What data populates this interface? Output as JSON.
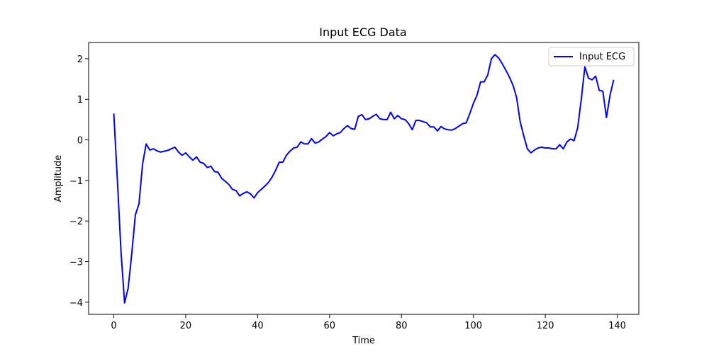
{
  "chart_data": {
    "type": "line",
    "title": "Input ECG Data",
    "xlabel": "Time",
    "ylabel": "Amplitude",
    "xlim": [
      -7,
      146
    ],
    "ylim": [
      -4.3,
      2.4
    ],
    "xticks": [
      0,
      20,
      40,
      60,
      80,
      100,
      120,
      140
    ],
    "yticks": [
      -4,
      -3,
      -2,
      -1,
      0,
      1,
      2
    ],
    "ytick_labels": [
      "−4",
      "−3",
      "−2",
      "−1",
      "0",
      "1",
      "2"
    ],
    "grid": false,
    "legend_position": "upper-right",
    "series": [
      {
        "name": "Input ECG",
        "color": "#0000ff",
        "x": [
          0,
          1,
          2,
          3,
          4,
          5,
          6,
          7,
          8,
          9,
          10,
          11,
          12,
          13,
          14,
          15,
          16,
          17,
          18,
          19,
          20,
          21,
          22,
          23,
          24,
          25,
          26,
          27,
          28,
          29,
          30,
          31,
          32,
          33,
          34,
          35,
          36,
          37,
          38,
          39,
          40,
          41,
          42,
          43,
          44,
          45,
          46,
          47,
          48,
          49,
          50,
          51,
          52,
          53,
          54,
          55,
          56,
          57,
          58,
          59,
          60,
          61,
          62,
          63,
          64,
          65,
          66,
          67,
          68,
          69,
          70,
          71,
          72,
          73,
          74,
          75,
          76,
          77,
          78,
          79,
          80,
          81,
          82,
          83,
          84,
          85,
          86,
          87,
          88,
          89,
          90,
          91,
          92,
          93,
          94,
          95,
          96,
          97,
          98,
          99,
          100,
          101,
          102,
          103,
          104,
          105,
          106,
          107,
          108,
          109,
          110,
          111,
          112,
          113,
          114,
          115,
          116,
          117,
          118,
          119,
          120,
          121,
          122,
          123,
          124,
          125,
          126,
          127,
          128,
          129,
          130,
          131,
          132,
          133,
          134,
          135,
          136,
          137,
          138,
          139
        ],
        "y": [
          0.65,
          -1.0,
          -2.75,
          -4.02,
          -3.65,
          -2.8,
          -1.85,
          -1.58,
          -0.6,
          -0.1,
          -0.25,
          -0.22,
          -0.27,
          -0.3,
          -0.28,
          -0.26,
          -0.22,
          -0.18,
          -0.3,
          -0.38,
          -0.32,
          -0.42,
          -0.5,
          -0.42,
          -0.55,
          -0.58,
          -0.68,
          -0.65,
          -0.78,
          -0.8,
          -0.95,
          -1.02,
          -1.1,
          -1.22,
          -1.25,
          -1.38,
          -1.32,
          -1.28,
          -1.33,
          -1.43,
          -1.3,
          -1.22,
          -1.14,
          -1.05,
          -0.92,
          -0.75,
          -0.55,
          -0.55,
          -0.38,
          -0.28,
          -0.2,
          -0.18,
          -0.05,
          -0.1,
          -0.1,
          0.03,
          -0.08,
          -0.05,
          0.02,
          0.08,
          0.18,
          0.1,
          0.15,
          0.18,
          0.28,
          0.35,
          0.28,
          0.26,
          0.58,
          0.62,
          0.5,
          0.52,
          0.58,
          0.63,
          0.52,
          0.5,
          0.5,
          0.68,
          0.52,
          0.6,
          0.52,
          0.5,
          0.4,
          0.25,
          0.48,
          0.48,
          0.45,
          0.42,
          0.32,
          0.32,
          0.22,
          0.33,
          0.27,
          0.25,
          0.24,
          0.28,
          0.34,
          0.4,
          0.42,
          0.65,
          0.9,
          1.1,
          1.43,
          1.43,
          1.6,
          2.0,
          2.1,
          2.02,
          1.88,
          1.72,
          1.55,
          1.35,
          1.05,
          0.45,
          0.1,
          -0.22,
          -0.32,
          -0.25,
          -0.2,
          -0.18,
          -0.2,
          -0.2,
          -0.22,
          -0.22,
          -0.12,
          -0.22,
          -0.05,
          0.02,
          -0.02,
          0.3,
          1.0,
          1.8,
          1.52,
          1.48,
          1.57,
          1.22,
          1.2,
          0.55,
          1.1,
          1.48
        ]
      }
    ]
  }
}
